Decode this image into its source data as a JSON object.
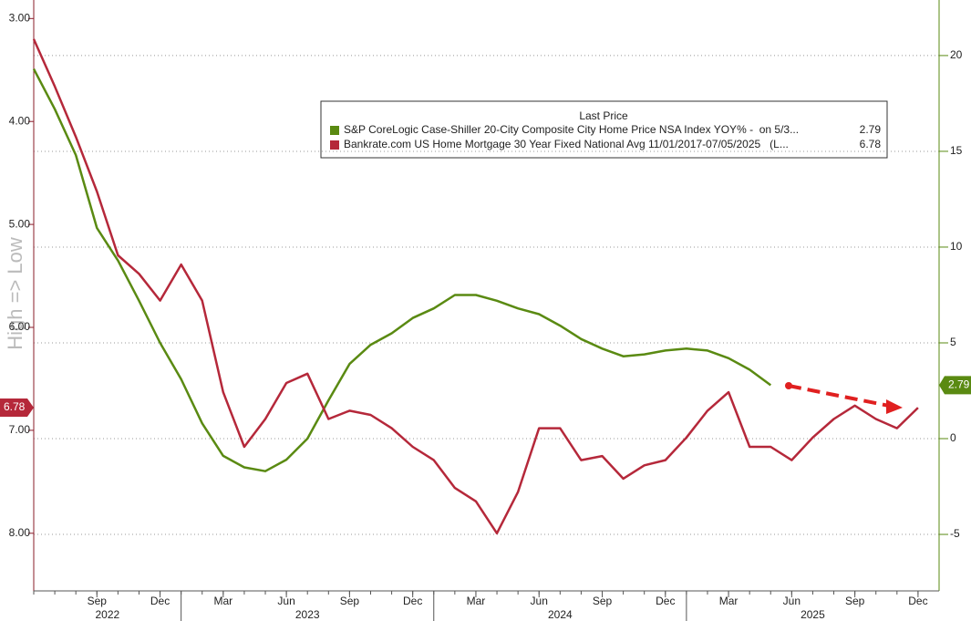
{
  "chart_data": {
    "type": "line",
    "y_axis_label": "High => Low",
    "legend_title": "Last Price",
    "x": [
      "2022-06",
      "2022-07",
      "2022-08",
      "2022-09",
      "2022-10",
      "2022-11",
      "2022-12",
      "2023-01",
      "2023-02",
      "2023-03",
      "2023-04",
      "2023-05",
      "2023-06",
      "2023-07",
      "2023-08",
      "2023-09",
      "2023-10",
      "2023-11",
      "2023-12",
      "2024-01",
      "2024-02",
      "2024-03",
      "2024-04",
      "2024-05",
      "2024-06",
      "2024-07",
      "2024-08",
      "2024-09",
      "2024-10",
      "2024-11",
      "2024-12",
      "2025-01",
      "2025-02",
      "2025-03",
      "2025-04",
      "2025-05",
      "2025-06",
      "2025-07",
      "2025-08",
      "2025-09",
      "2025-10",
      "2025-11",
      "2025-12"
    ],
    "xlim": [
      "2022-06",
      "2026-01"
    ],
    "xticks": [
      {
        "value": "2022-09",
        "label": "Sep"
      },
      {
        "value": "2022-12",
        "label": "Dec"
      },
      {
        "value": "2023-03",
        "label": "Mar"
      },
      {
        "value": "2023-06",
        "label": "Jun"
      },
      {
        "value": "2023-09",
        "label": "Sep"
      },
      {
        "value": "2023-12",
        "label": "Dec"
      },
      {
        "value": "2024-03",
        "label": "Mar"
      },
      {
        "value": "2024-06",
        "label": "Jun"
      },
      {
        "value": "2024-09",
        "label": "Sep"
      },
      {
        "value": "2024-12",
        "label": "Dec"
      },
      {
        "value": "2025-03",
        "label": "Mar"
      },
      {
        "value": "2025-06",
        "label": "Jun"
      },
      {
        "value": "2025-09",
        "label": "Sep"
      },
      {
        "value": "2025-12",
        "label": "Dec"
      }
    ],
    "x_years": [
      "2022",
      "2023",
      "2024",
      "2025"
    ],
    "ylim": [
      2.82,
      8.56
    ],
    "y_inverted": true,
    "yticks": [
      {
        "value": 3,
        "label": "3.00"
      },
      {
        "value": 4,
        "label": "4.00"
      },
      {
        "value": 5,
        "label": "5.00"
      },
      {
        "value": 6,
        "label": "6.00"
      },
      {
        "value": 7,
        "label": "7.00"
      },
      {
        "value": 8,
        "label": "8.00"
      }
    ],
    "y2lim": [
      -7.95,
      22.9
    ],
    "y2ticks": [
      -5,
      0,
      5,
      10,
      15,
      20
    ],
    "grid": true,
    "series": [
      {
        "name": "S&P CoreLogic Case-Shiller 20-City Composite City Home Price NSA Index YOY% -  on 5/3...",
        "color": "#5a8a12",
        "axis": "y2",
        "last": 2.79,
        "values": [
          19.3,
          17.2,
          14.8,
          11.0,
          9.3,
          7.2,
          5.0,
          3.1,
          0.8,
          -0.9,
          -1.5,
          -1.7,
          -1.1,
          0.0,
          2.0,
          3.9,
          4.9,
          5.5,
          6.3,
          6.8,
          7.5,
          7.5,
          7.2,
          6.8,
          6.5,
          5.9,
          5.2,
          4.7,
          4.3,
          4.4,
          4.6,
          4.7,
          4.6,
          4.2,
          3.6,
          2.79,
          null,
          null,
          null,
          null,
          null,
          null,
          null
        ]
      },
      {
        "name": "Bankrate.com US Home Mortgage 30 Year Fixed National Avg 11/01/2017-07/05/2025   (L...",
        "color": "#b5283a",
        "axis": "y",
        "last": 6.78,
        "values": [
          3.2,
          3.66,
          4.15,
          4.68,
          5.3,
          5.48,
          5.74,
          5.39,
          5.74,
          6.63,
          7.16,
          6.89,
          6.54,
          6.45,
          6.89,
          6.81,
          6.85,
          6.98,
          7.16,
          7.29,
          7.56,
          7.69,
          8.0,
          7.6,
          6.98,
          6.98,
          7.29,
          7.25,
          7.47,
          7.34,
          7.29,
          7.07,
          6.81,
          6.63,
          7.16,
          7.16,
          7.29,
          7.07,
          6.89,
          6.76,
          6.89,
          6.98,
          6.78
        ]
      }
    ]
  }
}
